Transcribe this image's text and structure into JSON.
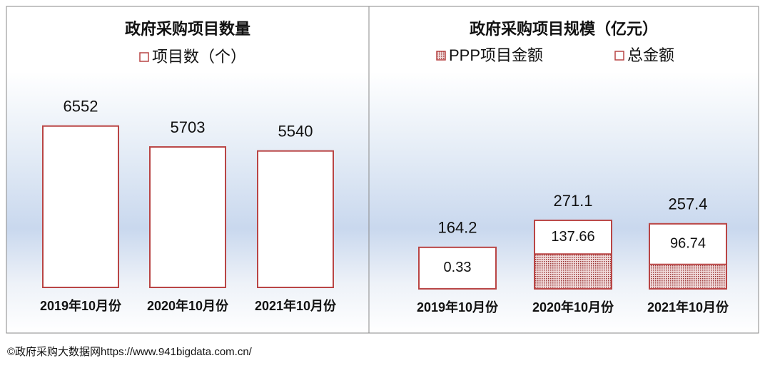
{
  "chart_data": [
    {
      "type": "bar",
      "title": "政府采购项目数量",
      "categories": [
        "2019年10月份",
        "2020年10月份",
        "2021年10月份"
      ],
      "series": [
        {
          "name": "项目数（个）",
          "color": "#b94545",
          "values": [
            6552,
            5703,
            5540
          ]
        }
      ],
      "ylim": [
        0,
        7500
      ]
    },
    {
      "type": "bar",
      "overlap": true,
      "title": "政府采购项目规模（亿元）",
      "categories": [
        "2019年10月份",
        "2020年10月份",
        "2021年10月份"
      ],
      "series": [
        {
          "name": "PPP项目金额",
          "color": "#b94545",
          "fill": "dots",
          "values": [
            0.33,
            137.66,
            96.74
          ]
        },
        {
          "name": "总金额",
          "color": "#b94545",
          "values": [
            164.2,
            271.1,
            257.4
          ]
        }
      ],
      "ylim": [
        0,
        700
      ]
    }
  ],
  "source": "©政府采购大数据网https://www.941bigdata.com.cn/"
}
